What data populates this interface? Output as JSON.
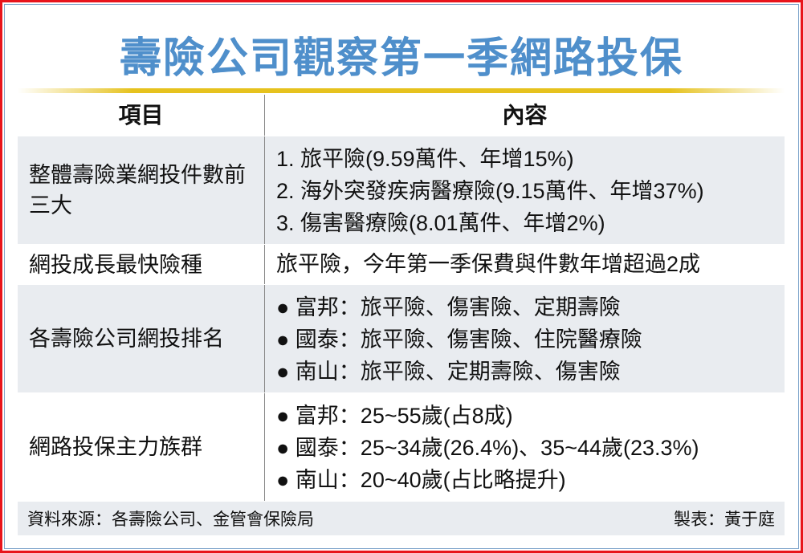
{
  "title": "壽險公司觀察第一季網路投保",
  "header": {
    "col1": "項目",
    "col2": "內容"
  },
  "rows": [
    {
      "item": "整體壽險業網投件數前三大",
      "content": [
        "1. 旅平險(9.59萬件、年增15%)",
        "2. 海外突發疾病醫療險(9.15萬件、年增37%)",
        "3. 傷害醫療險(8.01萬件、年增2%)"
      ]
    },
    {
      "item": "網投成長最快險種",
      "content": [
        "旅平險，今年第一季保費與件數年增超過2成"
      ]
    },
    {
      "item": "各壽險公司網投排名",
      "content": [
        "● 富邦：旅平險、傷害險、定期壽險",
        "● 國泰：旅平險、傷害險、住院醫療險",
        "● 南山：旅平險、定期壽險、傷害險"
      ]
    },
    {
      "item": "網路投保主力族群",
      "content": [
        "● 富邦：25~55歲(占8成)",
        "● 國泰：25~34歲(26.4%)、35~44歲(23.3%)",
        "● 南山：20~40歲(占比略提升)"
      ]
    }
  ],
  "footer": {
    "source": "資料來源：各壽險公司、金管會保險局",
    "credit": "製表：黃于庭"
  }
}
